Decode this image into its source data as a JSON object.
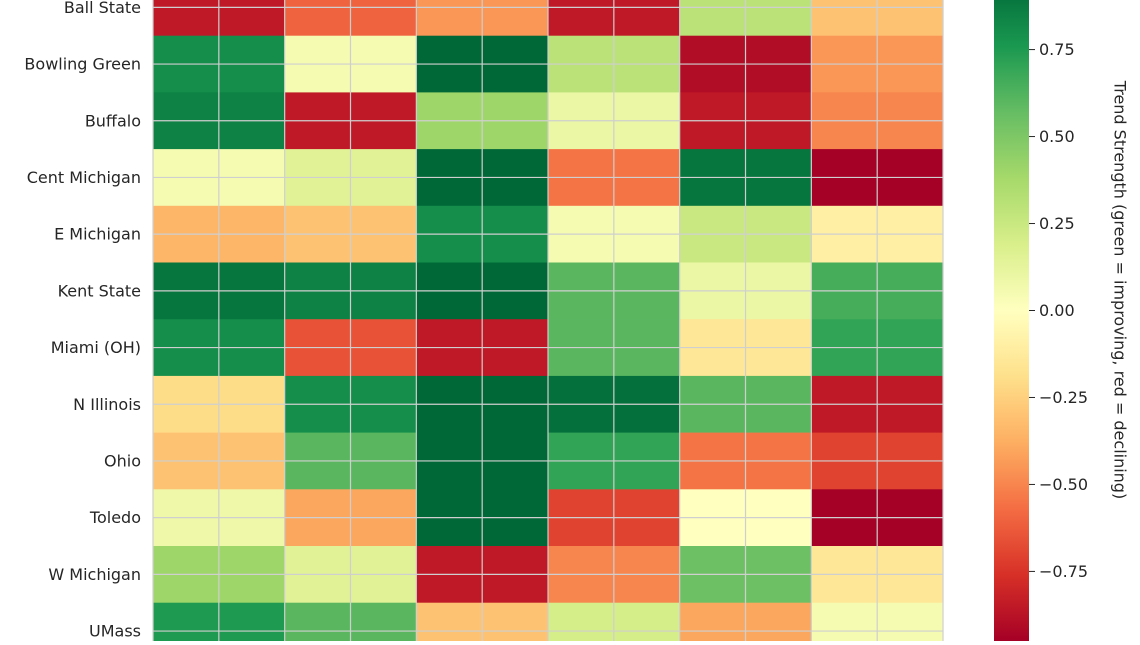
{
  "chart_data": {
    "type": "heatmap",
    "rows": [
      "Ball State",
      "Bowling Green",
      "Buffalo",
      "Cent Michigan",
      "E Michigan",
      "Kent State",
      "Miami (OH)",
      "N Illinois",
      "Ohio",
      "Toledo",
      "W Michigan",
      "UMass"
    ],
    "columns_count": 6,
    "values": [
      [
        -0.85,
        -0.6,
        -0.45,
        -0.85,
        0.3,
        -0.3
      ],
      [
        0.8,
        0.05,
        0.95,
        0.3,
        -0.9,
        -0.45
      ],
      [
        0.85,
        -0.85,
        0.4,
        0.1,
        -0.85,
        -0.5
      ],
      [
        0.05,
        0.15,
        0.98,
        -0.55,
        0.9,
        -1.0
      ],
      [
        -0.35,
        -0.3,
        0.8,
        0.05,
        0.25,
        -0.1
      ],
      [
        0.9,
        0.85,
        0.98,
        0.6,
        0.1,
        0.65
      ],
      [
        0.8,
        -0.65,
        -0.85,
        0.6,
        -0.15,
        0.7
      ],
      [
        -0.2,
        0.8,
        1.0,
        0.92,
        0.6,
        -0.85
      ],
      [
        -0.3,
        0.6,
        1.0,
        0.7,
        -0.55,
        -0.7
      ],
      [
        0.08,
        -0.4,
        1.0,
        -0.7,
        0.0,
        -0.98
      ],
      [
        0.4,
        0.15,
        -0.85,
        -0.5,
        0.55,
        -0.15
      ],
      [
        0.75,
        0.6,
        -0.3,
        0.2,
        -0.4,
        0.05
      ]
    ],
    "colormap": "RdYlGn",
    "vmin": -0.95,
    "vmax": 0.95,
    "colorbar": {
      "label": "Trend Strength (green = improving, red = declining)",
      "ticks": [
        0.75,
        0.5,
        0.25,
        0.0,
        -0.25,
        -0.5,
        -0.75
      ],
      "tick_labels": [
        "0.75",
        "0.50",
        "0.25",
        "0.00",
        "−0.25",
        "−0.50",
        "−0.75"
      ]
    },
    "grid": true
  }
}
